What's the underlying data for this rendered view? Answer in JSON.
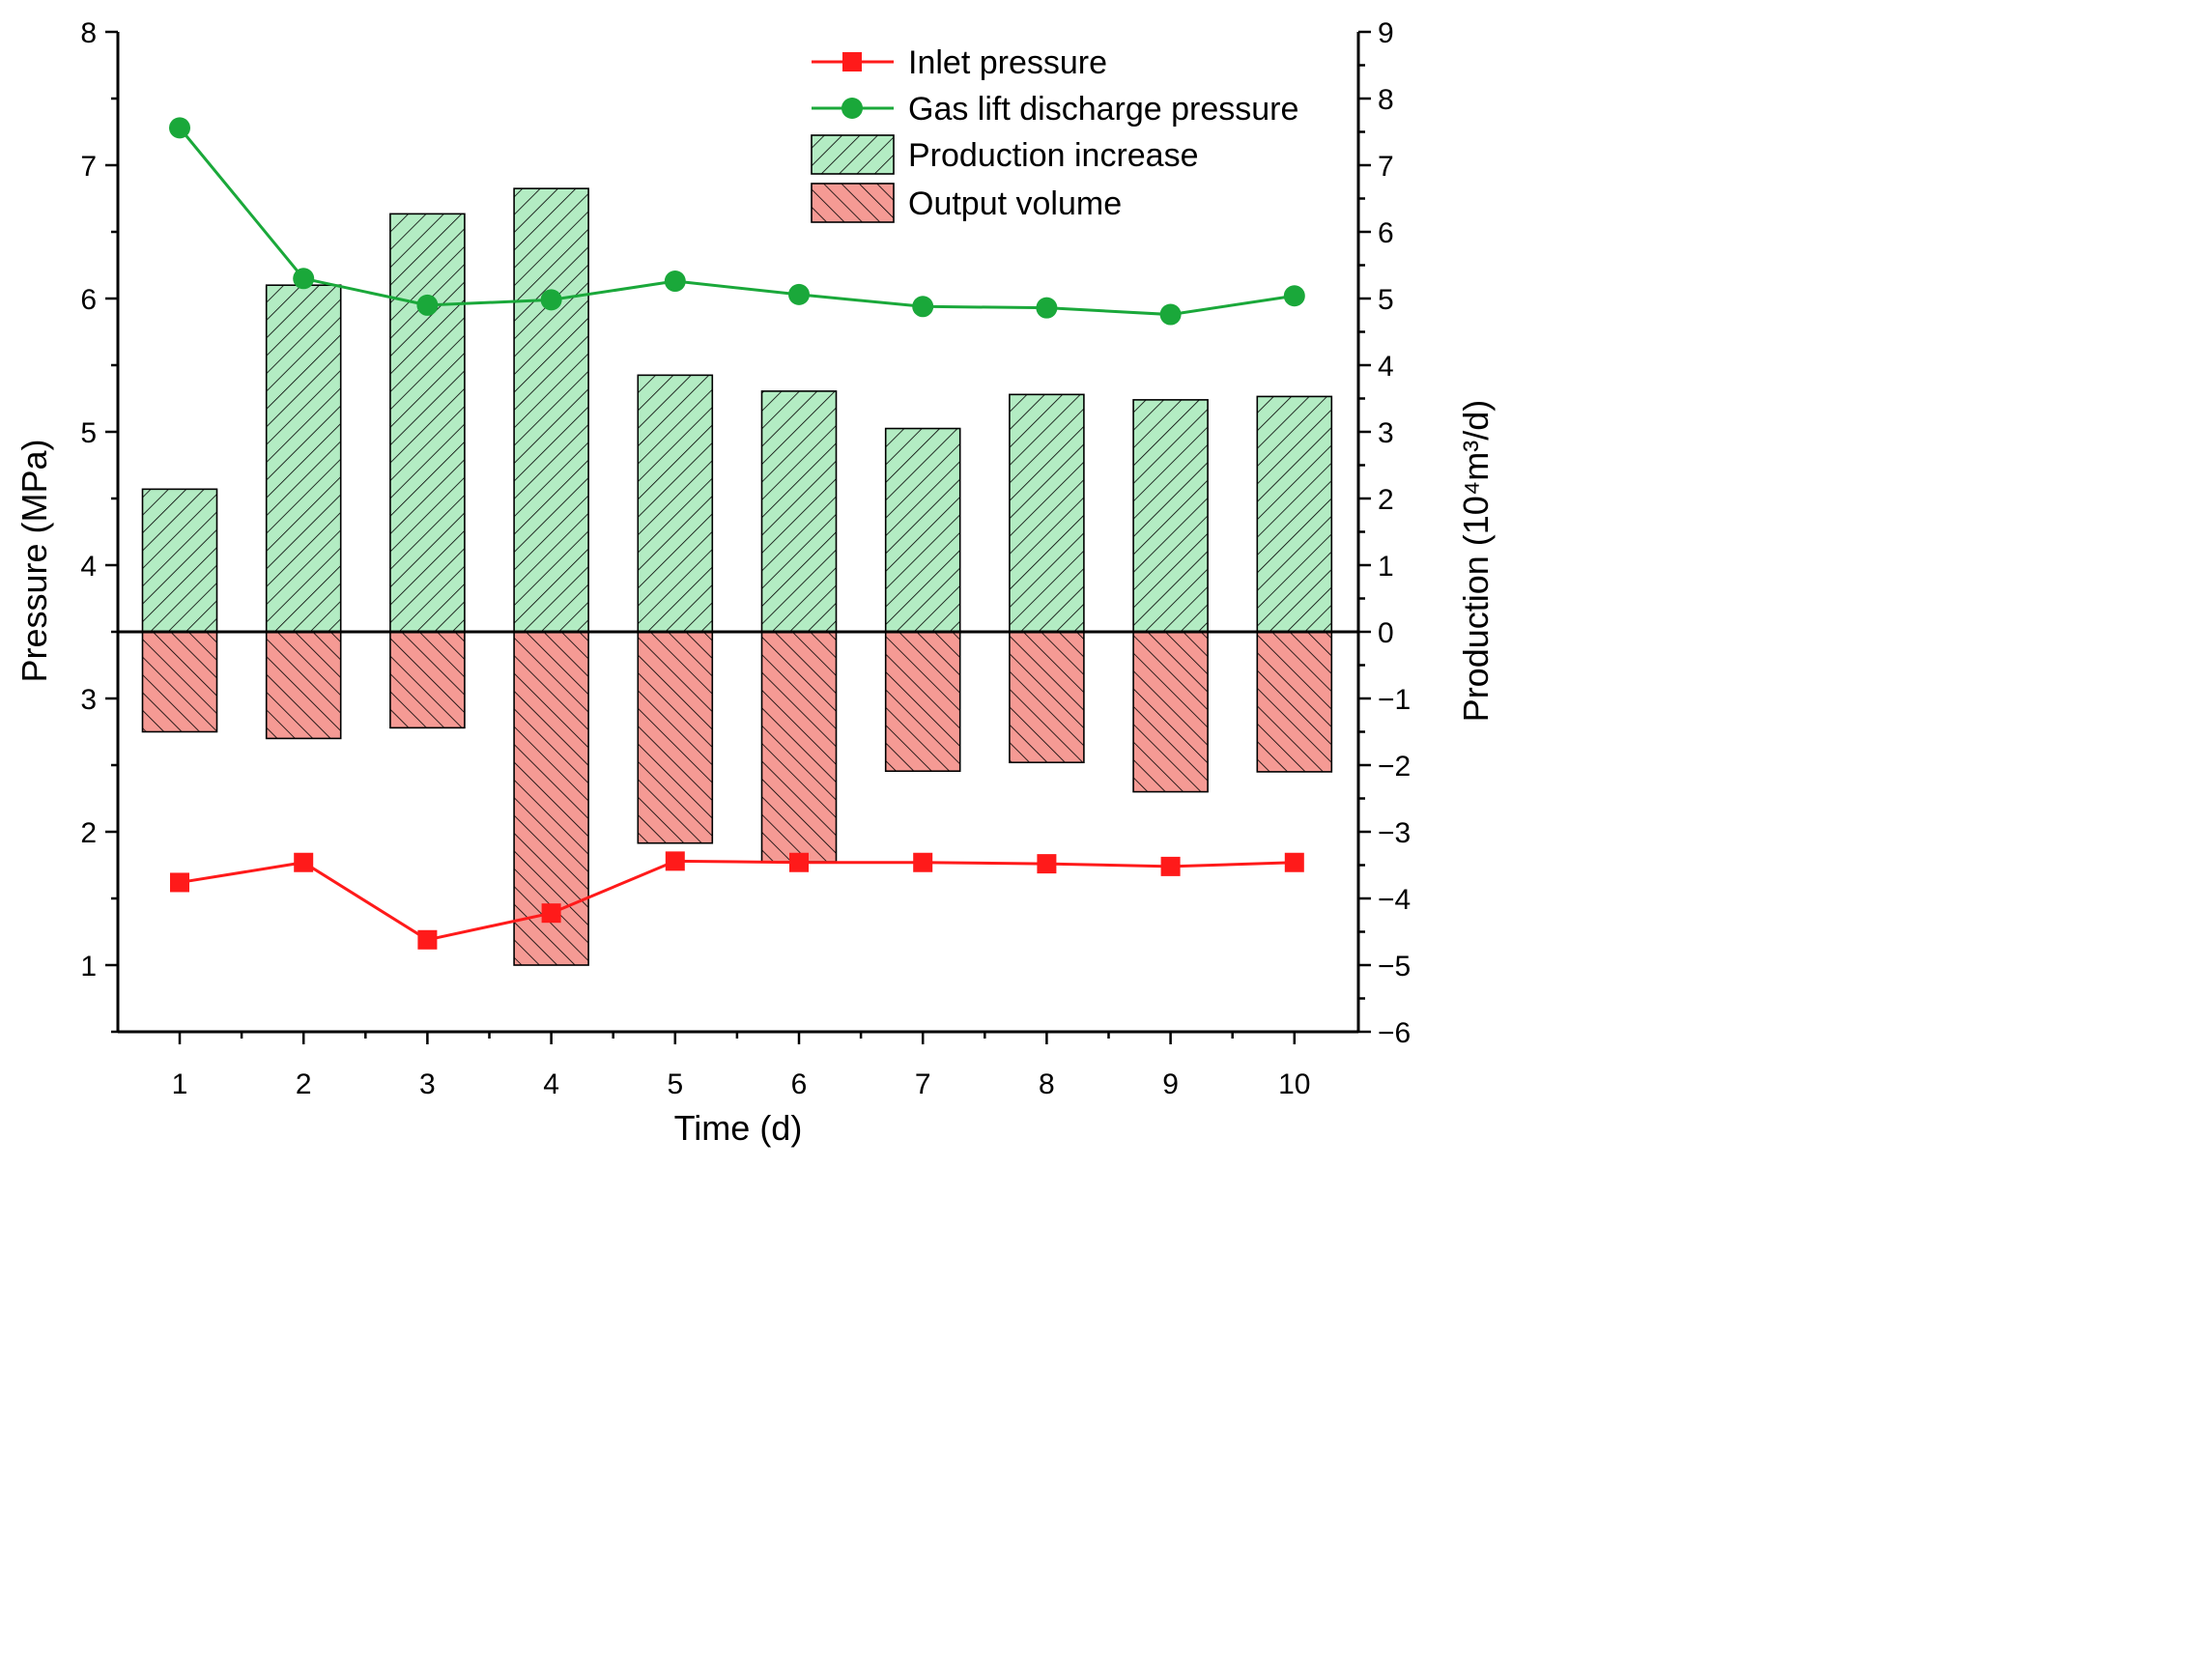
{
  "chart_data": {
    "type": "bar+line",
    "title": "",
    "x": [
      1,
      2,
      3,
      4,
      5,
      6,
      7,
      8,
      9,
      10
    ],
    "xlabel": "Time (d)",
    "ylabel_left": "Pressure (MPa)",
    "ylabel_right": "Production (10⁴m³/d)",
    "ylim_left": [
      0.5,
      8
    ],
    "yticks_left": [
      1,
      2,
      3,
      4,
      5,
      6,
      7,
      8
    ],
    "ylim_right": [
      -6,
      9
    ],
    "yticks_right": [
      -6,
      -5,
      -4,
      -3,
      -2,
      -1,
      0,
      1,
      2,
      3,
      4,
      5,
      6,
      7,
      8,
      9
    ],
    "grid": false,
    "legend_position": "top-right",
    "colors": {
      "inlet_pressure": "#ff1a1a",
      "gas_lift_pressure": "#1aa83a",
      "production_increase_fill": "#b3ecc3",
      "output_volume_fill": "#f59a94",
      "axis": "#000000"
    },
    "series": [
      {
        "name": "Inlet pressure",
        "kind": "line",
        "axis": "left",
        "marker": "square",
        "values": [
          1.62,
          1.77,
          1.19,
          1.39,
          1.78,
          1.77,
          1.77,
          1.76,
          1.74,
          1.77
        ]
      },
      {
        "name": "Gas lift discharge pressure",
        "kind": "line",
        "axis": "left",
        "marker": "circle",
        "values": [
          7.28,
          6.15,
          5.95,
          5.99,
          6.13,
          6.03,
          5.94,
          5.93,
          5.88,
          6.02
        ]
      },
      {
        "name": "Production increase",
        "kind": "bar",
        "axis": "right",
        "hatch": "forward-diagonal",
        "values": [
          2.14,
          5.2,
          6.27,
          6.65,
          3.85,
          3.61,
          3.05,
          3.56,
          3.48,
          3.53
        ]
      },
      {
        "name": "Output volume",
        "kind": "bar",
        "axis": "right",
        "hatch": "back-diagonal",
        "values": [
          -1.5,
          -1.6,
          -1.44,
          -5.0,
          -3.17,
          -3.45,
          -2.09,
          -1.96,
          -2.4,
          -2.1
        ]
      }
    ]
  }
}
